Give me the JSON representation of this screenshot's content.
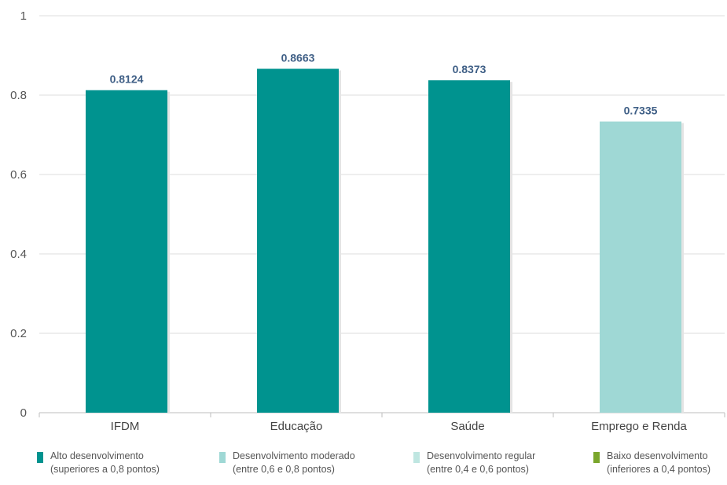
{
  "chart_data": {
    "type": "bar",
    "categories": [
      "IFDM",
      "Educação",
      "Saúde",
      "Emprego e Renda"
    ],
    "values": [
      0.8124,
      0.8663,
      0.8373,
      0.7335
    ],
    "value_labels": [
      "0.8124",
      "0.8663",
      "0.8373",
      "0.7335"
    ],
    "bar_colors": [
      "#00938f",
      "#00938f",
      "#00938f",
      "#9fd8d5"
    ],
    "ylim": [
      0,
      1
    ],
    "yticks": [
      0,
      0.2,
      0.4,
      0.6,
      0.8,
      1
    ],
    "ytick_labels": [
      "0",
      "0.2",
      "0.4",
      "0.6",
      "0.8",
      "1"
    ],
    "grid": true,
    "legend_position": "bottom",
    "legend": [
      {
        "line1": "Alto desenvolvimento",
        "line2": "(superiores a 0,8 pontos)",
        "color": "#00938f"
      },
      {
        "line1": "Desenvolvimento moderado",
        "line2": "(entre 0,6 e 0,8 pontos)",
        "color": "#9fd8d5"
      },
      {
        "line1": "Desenvolvimento regular",
        "line2": "(entre 0,4 e 0,6 pontos)",
        "color": "#bfe6e1"
      },
      {
        "line1": "Baixo desenvolvimento",
        "line2": "(inferiores a 0,4 pontos)",
        "color": "#7aa62c"
      }
    ]
  }
}
